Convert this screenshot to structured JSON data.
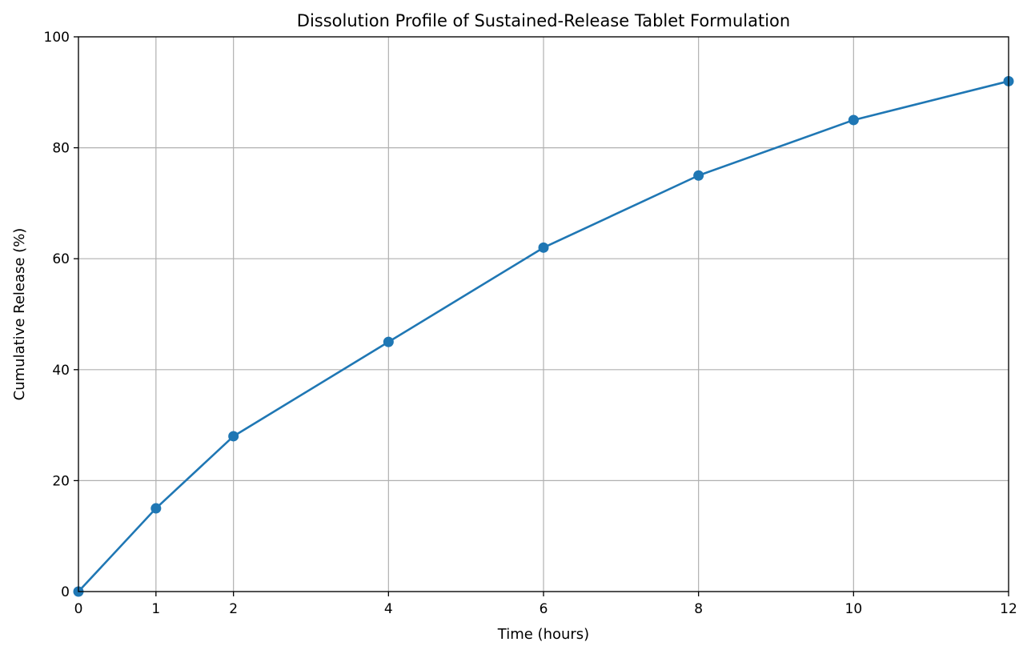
{
  "chart_data": {
    "type": "line",
    "title": "Dissolution Profile of Sustained-Release Tablet Formulation",
    "xlabel": "Time (hours)",
    "ylabel": "Cumulative Release (%)",
    "xlim": [
      0,
      12
    ],
    "ylim": [
      0,
      100
    ],
    "xticks": [
      0,
      1,
      2,
      4,
      6,
      8,
      10,
      12
    ],
    "yticks": [
      0,
      20,
      40,
      60,
      80,
      100
    ],
    "grid": true,
    "series": [
      {
        "color": "#1f77b4",
        "marker": "circle",
        "x": [
          0,
          1,
          2,
          4,
          6,
          8,
          10,
          12
        ],
        "y": [
          0,
          15,
          28,
          45,
          62,
          75,
          85,
          92
        ]
      }
    ]
  }
}
